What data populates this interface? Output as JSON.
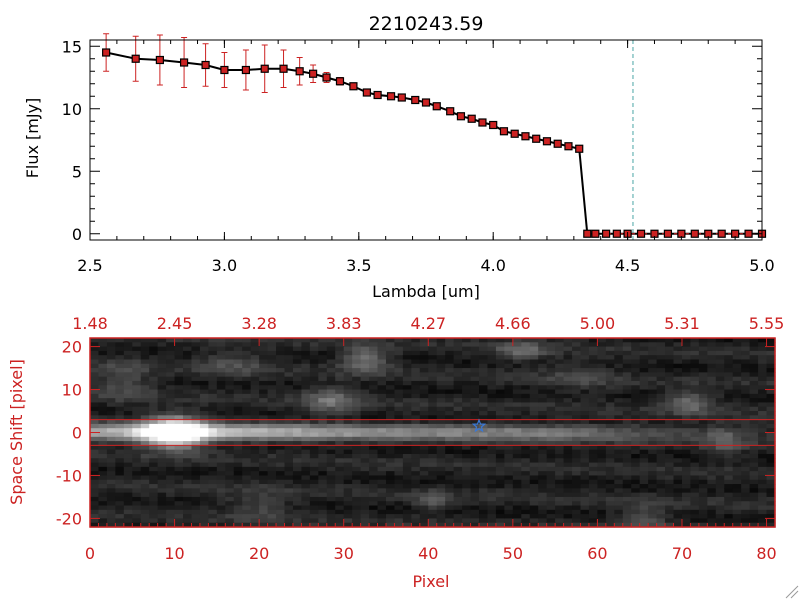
{
  "colors": {
    "red": "#cc2222",
    "black": "#000000",
    "cyan_line": "#4aa6a6",
    "star": "#3a78d6"
  },
  "chart_data": [
    {
      "type": "line",
      "title": "2210243.59",
      "xlabel": "Lambda [um]",
      "ylabel": "Flux [mJy]",
      "xlim": [
        2.5,
        5.0
      ],
      "ylim": [
        -0.5,
        15.5
      ],
      "xticks": [
        "2.5",
        "3.0",
        "3.5",
        "4.0",
        "4.5",
        "5.0"
      ],
      "yticks": [
        "0",
        "5",
        "10",
        "15"
      ],
      "vertical_marker_x": 4.52,
      "series": [
        {
          "name": "flux",
          "x": [
            2.56,
            2.67,
            2.76,
            2.85,
            2.93,
            3.0,
            3.08,
            3.15,
            3.22,
            3.28,
            3.33,
            3.38,
            3.43,
            3.48,
            3.53,
            3.57,
            3.62,
            3.66,
            3.71,
            3.75,
            3.79,
            3.84,
            3.88,
            3.92,
            3.96,
            4.0,
            4.04,
            4.08,
            4.12,
            4.16,
            4.2,
            4.24,
            4.28,
            4.32,
            4.35,
            4.38,
            4.42,
            4.46,
            4.5,
            4.55,
            4.6,
            4.65,
            4.7,
            4.75,
            4.8,
            4.85,
            4.9,
            4.95,
            5.0
          ],
          "y": [
            14.5,
            14.0,
            13.9,
            13.7,
            13.5,
            13.1,
            13.1,
            13.2,
            13.2,
            13.0,
            12.8,
            12.5,
            12.2,
            11.8,
            11.3,
            11.1,
            11.0,
            10.9,
            10.7,
            10.5,
            10.2,
            9.8,
            9.4,
            9.2,
            8.9,
            8.7,
            8.2,
            8.0,
            7.8,
            7.6,
            7.4,
            7.2,
            7.0,
            6.8,
            0.0,
            0.0,
            0.0,
            0.0,
            0.0,
            0.0,
            0.0,
            0.0,
            0.0,
            0.0,
            0.0,
            0.0,
            0.0,
            0.0,
            0.0
          ],
          "yerr": [
            1.5,
            1.8,
            2.0,
            2.0,
            1.7,
            1.4,
            1.6,
            1.9,
            1.5,
            1.1,
            0.7,
            0.4,
            0.3,
            0.2,
            0.2,
            0.15,
            0.15,
            0.15,
            0.15,
            0.15,
            0.15,
            0.15,
            0.15,
            0.15,
            0.15,
            0.15,
            0.15,
            0.15,
            0.15,
            0.15,
            0.15,
            0.15,
            0.15,
            0.2,
            0.0,
            0.0,
            0.0,
            0.0,
            0.0,
            0.0,
            0.0,
            0.0,
            0.0,
            0.0,
            0.0,
            0.0,
            0.0,
            0.0,
            0.0
          ]
        }
      ]
    },
    {
      "type": "heatmap",
      "xlabel": "Pixel",
      "ylabel": "Space Shift [pixel]",
      "xlim": [
        0,
        81
      ],
      "ylim": [
        -22,
        22
      ],
      "xticks": [
        "0",
        "10",
        "20",
        "30",
        "40",
        "50",
        "60",
        "70",
        "80"
      ],
      "yticks": [
        "-20",
        "-10",
        "0",
        "10",
        "20"
      ],
      "top_axis_ticks": [
        "1.48",
        "2.45",
        "3.28",
        "3.83",
        "4.27",
        "4.66",
        "5.00",
        "5.31",
        "5.55"
      ],
      "band_lines_y": [
        3,
        -3
      ],
      "star_marker": {
        "x": 46,
        "y": 1.5
      },
      "trace": {
        "y_center": 0,
        "x_range": [
          0,
          81
        ],
        "peak_x": 10
      },
      "blobs": [
        {
          "x": 10,
          "y": 0,
          "sigma_x": 2.5,
          "sigma_y": 2.5,
          "amp": 0.95
        },
        {
          "x": 32.5,
          "y": 17,
          "sigma_x": 2.0,
          "sigma_y": 2.0,
          "amp": 0.35
        },
        {
          "x": 28.5,
          "y": 7.5,
          "sigma_x": 2.2,
          "sigma_y": 2.2,
          "amp": 0.3
        },
        {
          "x": 51,
          "y": 19,
          "sigma_x": 2.0,
          "sigma_y": 1.5,
          "amp": 0.28
        },
        {
          "x": 71,
          "y": 7,
          "sigma_x": 2.0,
          "sigma_y": 1.8,
          "amp": 0.3
        },
        {
          "x": 65.5,
          "y": -20,
          "sigma_x": 2.0,
          "sigma_y": 2.0,
          "amp": 0.22
        },
        {
          "x": 40.5,
          "y": -16,
          "sigma_x": 1.5,
          "sigma_y": 1.5,
          "amp": 0.2
        },
        {
          "x": 75,
          "y": -2,
          "sigma_x": 1.5,
          "sigma_y": 2.5,
          "amp": 0.2
        },
        {
          "x": 4,
          "y": 12,
          "sigma_x": 2.5,
          "sigma_y": 3.0,
          "amp": 0.18
        },
        {
          "x": 17,
          "y": 16,
          "sigma_x": 3.0,
          "sigma_y": 2.5,
          "amp": 0.15
        },
        {
          "x": 20,
          "y": -17,
          "sigma_x": 3.0,
          "sigma_y": 2.5,
          "amp": 0.15
        },
        {
          "x": 58,
          "y": 13,
          "sigma_x": 3.0,
          "sigma_y": 2.5,
          "amp": 0.12
        }
      ]
    }
  ]
}
